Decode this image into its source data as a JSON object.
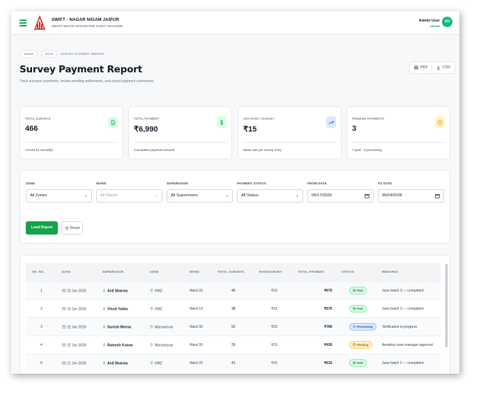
{
  "header": {
    "brand_title": "SWIFT - NAGAR NIGAM JAIPUR",
    "brand_subtitle": "SMART WASTE INTEGRATED FLEET TRACKING",
    "user_name": "Admin User",
    "user_status": "ONLINE",
    "avatar_initials": "AD"
  },
  "breadcrumb": {
    "items": [
      "VEMW",
      "RFID"
    ],
    "current": "SURVEY PAYMENT REPORT"
  },
  "page": {
    "title": "Survey Payment Report",
    "subtitle": "Track surveyor payments, review pending settlements, and export payment summaries."
  },
  "actions": {
    "pdf_label": "PDF",
    "csv_label": "CSV"
  },
  "stats": [
    {
      "label": "TOTAL SURVEYS",
      "value": "466",
      "note": "Across 12 record(s)",
      "icon": "document-icon",
      "color": "#16a34a"
    },
    {
      "label": "TOTAL PAYMENT",
      "value": "₹6,990",
      "note": "Cumulative payment amount",
      "icon": "dollar-icon",
      "color": "#16a34a"
    },
    {
      "label": "AVG RATE / SURVEY",
      "value": "₹15",
      "note": "Mean rate per survey entry",
      "icon": "trending-up-icon",
      "color": "#2563eb"
    },
    {
      "label": "PENDING PAYMENTS",
      "value": "3",
      "note": "7 paid · 2 processing",
      "icon": "clock-icon",
      "color": "#f59e0b"
    }
  ],
  "filters": {
    "zone": {
      "label": "ZONE",
      "value": "All Zones"
    },
    "ward": {
      "label": "WARD",
      "value": "All Wards"
    },
    "supervisor": {
      "label": "SUPERVISOR",
      "value": "All Supervisors"
    },
    "payment_status": {
      "label": "PAYMENT STATUS",
      "value": "All Status"
    },
    "from_date": {
      "label": "FROM DATE",
      "value": "06/17/2026"
    },
    "to_date": {
      "label": "TO DATE",
      "value": "06/24/2026"
    },
    "load_label": "Load Report",
    "reset_label": "Reset"
  },
  "table": {
    "columns": [
      "SR. NO.",
      "DATE",
      "SUPERVISOR",
      "ZONE",
      "WARD",
      "TOTAL SURVEYS",
      "RATE/SURVEY",
      "TOTAL PAYMENT",
      "STATUS",
      "REMARKS"
    ],
    "rows": [
      {
        "sr": "1",
        "date": "23 Jun 2026",
        "supervisor": "Anil Sharma",
        "zone": "HMZ",
        "ward": "Ward 20",
        "surveys": "45",
        "rate": "₹15",
        "payment": "₹675",
        "status": "Paid",
        "remarks": "June batch 3 — completed"
      },
      {
        "sr": "2",
        "date": "23 Jun 2026",
        "supervisor": "Vinod Yadav",
        "zone": "HMZ",
        "ward": "Ward 10",
        "surveys": "38",
        "rate": "₹15",
        "payment": "₹570",
        "status": "Paid",
        "remarks": "June batch 3 — completed"
      },
      {
        "sr": "3",
        "date": "22 Jun 2026",
        "supervisor": "Suresh Meena",
        "zone": "Mansarovar",
        "ward": "Ward 30",
        "surveys": "52",
        "rate": "₹15",
        "payment": "₹780",
        "status": "Processing",
        "remarks": "Verification in progress"
      },
      {
        "sr": "4",
        "date": "22 Jun 2026",
        "supervisor": "Ramesh Kumar",
        "zone": "Mansarovar",
        "ward": "Ward 30",
        "surveys": "29",
        "rate": "₹15",
        "payment": "₹435",
        "status": "Pending",
        "remarks": "Awaiting zone manager approval"
      },
      {
        "sr": "5",
        "date": "21 Jun 2026",
        "supervisor": "Anil Sharma",
        "zone": "HMZ",
        "ward": "Ward 20",
        "surveys": "41",
        "rate": "₹15",
        "payment": "₹615",
        "status": "Paid",
        "remarks": "June batch 2 — completed"
      }
    ]
  },
  "status_styles": {
    "Paid": {
      "bg": "#dcfce7",
      "fg": "#15803d",
      "border": "#86efac"
    },
    "Processing": {
      "bg": "#dbeafe",
      "fg": "#1d4ed8",
      "border": "#93c5fd"
    },
    "Pending": {
      "bg": "#fef3c7",
      "fg": "#b45309",
      "border": "#fcd34d"
    }
  }
}
